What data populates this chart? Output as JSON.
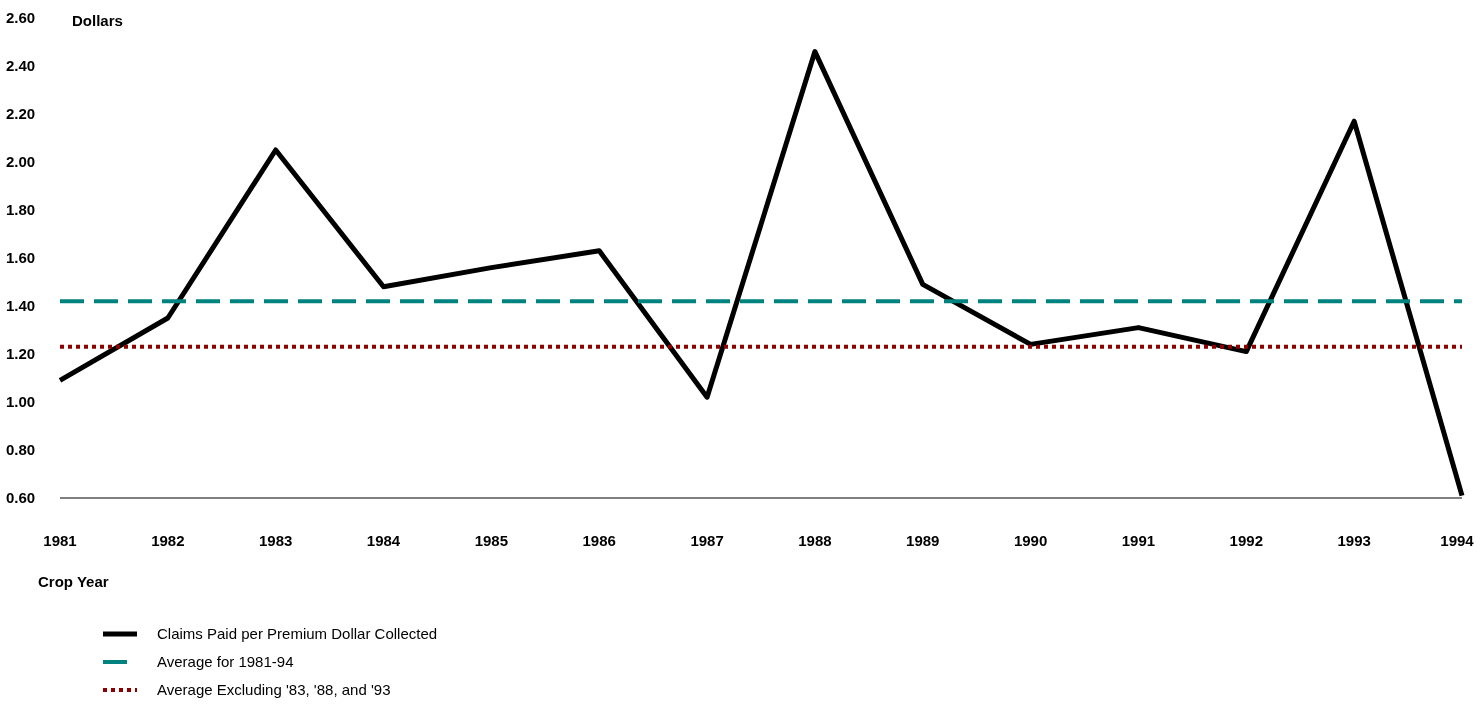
{
  "chart_data": {
    "type": "line",
    "ylabel": "Dollars",
    "xlabel": "Crop Year",
    "x": [
      1981,
      1982,
      1983,
      1984,
      1985,
      1986,
      1987,
      1988,
      1989,
      1990,
      1991,
      1992,
      1993,
      1994
    ],
    "series": [
      {
        "name": "Claims Paid per Premium Dollar Collected",
        "color": "#000000",
        "line_style": "solid",
        "values": [
          1.09,
          1.35,
          2.05,
          1.48,
          1.56,
          1.63,
          1.02,
          2.46,
          1.49,
          1.24,
          1.31,
          1.21,
          2.17,
          0.61
        ]
      },
      {
        "name": "Average for 1981-94",
        "color": "#00827f",
        "line_style": "dashed",
        "values": [
          1.42,
          1.42,
          1.42,
          1.42,
          1.42,
          1.42,
          1.42,
          1.42,
          1.42,
          1.42,
          1.42,
          1.42,
          1.42,
          1.42
        ]
      },
      {
        "name": "Average Excluding '83, '88, and '93",
        "color": "#8b0000",
        "line_style": "dotted",
        "values": [
          1.23,
          1.23,
          1.23,
          1.23,
          1.23,
          1.23,
          1.23,
          1.23,
          1.23,
          1.23,
          1.23,
          1.23,
          1.23,
          1.23
        ]
      }
    ],
    "xlim": [
      1981,
      1994
    ],
    "xticks": [
      1981,
      1982,
      1983,
      1984,
      1985,
      1986,
      1987,
      1988,
      1989,
      1990,
      1991,
      1992,
      1993,
      1994
    ],
    "ylim": [
      0.6,
      2.6
    ],
    "yticks": [
      {
        "value": 0.6,
        "label": "0.60"
      },
      {
        "value": 0.8,
        "label": "0.80"
      },
      {
        "value": 1.0,
        "label": "1.00"
      },
      {
        "value": 1.2,
        "label": "1.20"
      },
      {
        "value": 1.4,
        "label": "1.40"
      },
      {
        "value": 1.6,
        "label": "1.60"
      },
      {
        "value": 1.8,
        "label": "1.80"
      },
      {
        "value": 2.0,
        "label": "2.00"
      },
      {
        "value": 2.2,
        "label": "2.20"
      },
      {
        "value": 2.4,
        "label": "2.40"
      },
      {
        "value": 2.6,
        "label": "2.60"
      }
    ],
    "grid": false,
    "legend": "bottom left",
    "marker": "none"
  }
}
